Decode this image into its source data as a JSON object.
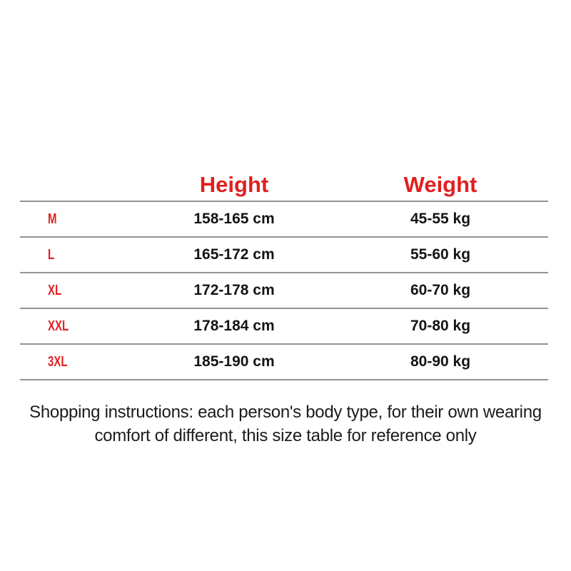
{
  "table": {
    "header": {
      "size": "",
      "height": "Height",
      "weight": "Weight"
    },
    "rows": [
      {
        "size": "M",
        "height": "158-165 cm",
        "weight": "45-55 kg"
      },
      {
        "size": "L",
        "height": "165-172 cm",
        "weight": "55-60 kg"
      },
      {
        "size": "XL",
        "height": "172-178 cm",
        "weight": "60-70 kg"
      },
      {
        "size": "XXL",
        "height": "178-184 cm",
        "weight": "70-80 kg"
      },
      {
        "size": "3XL",
        "height": "185-190 cm",
        "weight": "80-90 kg"
      }
    ]
  },
  "footer": {
    "line1": "Shopping instructions: each person's body type, for their own wearing",
    "line2": "comfort of different, this size table for reference only"
  },
  "colors": {
    "accent_red": "#e02020",
    "divider_gray": "#949494",
    "text_black": "#141414"
  },
  "chart_data": {
    "type": "table",
    "columns": [
      "",
      "Height",
      "Weight"
    ],
    "rows": [
      [
        "M",
        "158-165 cm",
        "45-55 kg"
      ],
      [
        "L",
        "165-172 cm",
        "55-60 kg"
      ],
      [
        "XL",
        "172-178 cm",
        "60-70 kg"
      ],
      [
        "XXL",
        "178-184 cm",
        "70-80 kg"
      ],
      [
        "3XL",
        "185-190 cm",
        "80-90 kg"
      ]
    ],
    "title": "",
    "notes": "Shopping instructions: each person's body type, for their own wearing comfort of different, this size table for reference only",
    "layout": "header row red, size labels red, values black, horizontal gray dividers only"
  }
}
